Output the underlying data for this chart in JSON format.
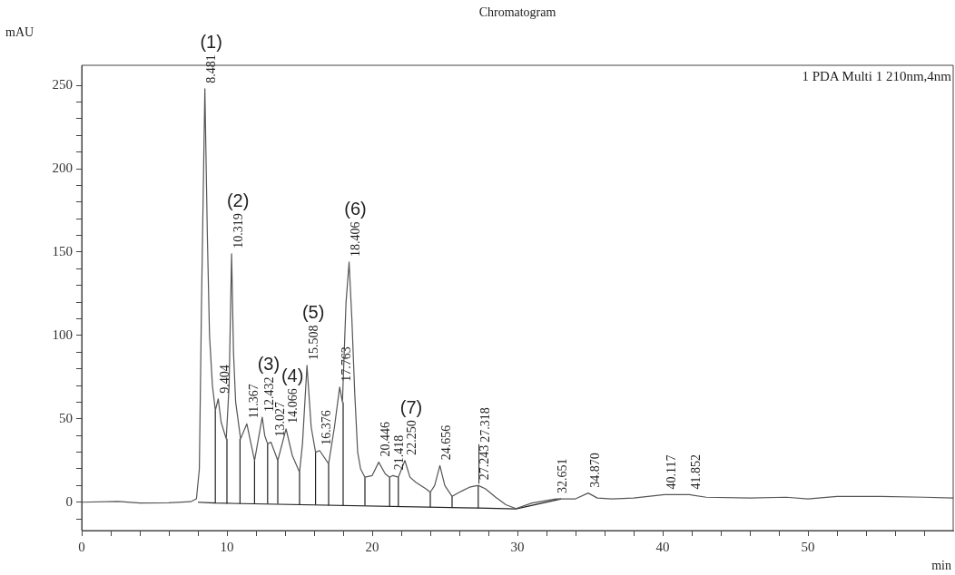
{
  "chart_data": {
    "type": "line",
    "title": "Chromatogram",
    "xlabel": "min",
    "ylabel": "mAU",
    "xlim": [
      0,
      60
    ],
    "ylim": [
      -17,
      262
    ],
    "xticks": [
      0,
      {
        "value": 2,
        "label": null
      },
      {
        "value": 4,
        "label": null
      },
      {
        "value": 6,
        "label": null
      },
      {
        "value": 8,
        "label": null
      },
      10,
      {
        "value": 12,
        "label": null
      },
      {
        "value": 14,
        "label": null
      },
      {
        "value": 16,
        "label": null
      },
      {
        "value": 18,
        "label": null
      },
      20,
      {
        "value": 22,
        "label": null
      },
      {
        "value": 24,
        "label": null
      },
      {
        "value": 26,
        "label": null
      },
      {
        "value": 28,
        "label": null
      },
      30,
      {
        "value": 32,
        "label": null
      },
      {
        "value": 34,
        "label": null
      },
      {
        "value": 36,
        "label": null
      },
      {
        "value": 38,
        "label": null
      },
      40,
      {
        "value": 42,
        "label": null
      },
      {
        "value": 44,
        "label": null
      },
      {
        "value": 46,
        "label": null
      },
      {
        "value": 48,
        "label": null
      },
      50,
      {
        "value": 52,
        "label": null
      },
      {
        "value": 54,
        "label": null
      },
      {
        "value": 56,
        "label": null
      },
      {
        "value": 58,
        "label": null
      }
    ],
    "yticks": [
      {
        "value": -10,
        "label": null
      },
      0,
      {
        "value": 10,
        "label": null
      },
      {
        "value": 20,
        "label": null
      },
      {
        "value": 30,
        "label": null
      },
      {
        "value": 40,
        "label": null
      },
      50,
      {
        "value": 60,
        "label": null
      },
      {
        "value": 70,
        "label": null
      },
      {
        "value": 80,
        "label": null
      },
      {
        "value": 90,
        "label": null
      },
      100,
      {
        "value": 110,
        "label": null
      },
      {
        "value": 120,
        "label": null
      },
      {
        "value": 130,
        "label": null
      },
      {
        "value": 140,
        "label": null
      },
      150,
      {
        "value": 160,
        "label": null
      },
      {
        "value": 170,
        "label": null
      },
      {
        "value": 180,
        "label": null
      },
      {
        "value": 190,
        "label": null
      },
      200,
      {
        "value": 210,
        "label": null
      },
      {
        "value": 220,
        "label": null
      },
      {
        "value": 230,
        "label": null
      },
      {
        "value": 240,
        "label": null
      },
      250
    ],
    "series": [
      {
        "color": "#555555",
        "x": [
          0,
          2.5,
          4,
          6,
          7.5,
          7.9,
          8.1,
          8.25,
          8.48,
          8.65,
          8.8,
          9.0,
          9.2,
          9.4,
          9.6,
          9.95,
          10.15,
          10.32,
          10.45,
          10.6,
          10.94,
          11.37,
          11.9,
          12.43,
          12.6,
          12.8,
          13.03,
          13.5,
          14.07,
          14.5,
          15.0,
          15.2,
          15.51,
          15.8,
          16.1,
          16.38,
          17.0,
          17.4,
          17.76,
          17.95,
          18.2,
          18.41,
          18.6,
          18.8,
          19.0,
          19.2,
          19.5,
          20.0,
          20.45,
          20.9,
          21.2,
          21.42,
          21.8,
          22.25,
          22.6,
          23.0,
          23.7,
          24.0,
          24.3,
          24.66,
          25.0,
          25.5,
          26.0,
          26.7,
          27.24,
          27.32,
          27.8,
          28.5,
          29.2,
          29.9,
          31.0,
          32.0,
          32.65,
          34.0,
          34.87,
          35.5,
          36.5,
          38,
          40.12,
          41.85,
          43,
          46,
          48.5,
          50,
          52,
          55,
          58,
          60
        ],
        "values": [
          0,
          0.5,
          -0.5,
          -0.3,
          0.3,
          2,
          20,
          120,
          248,
          160,
          100,
          70,
          55,
          62,
          48,
          38,
          70,
          149,
          90,
          60,
          38,
          47,
          25,
          51,
          40,
          35,
          36,
          25,
          44,
          28,
          18,
          35,
          82,
          45,
          30,
          31,
          23,
          45,
          69,
          60,
          120,
          144,
          110,
          65,
          30,
          20,
          15,
          16,
          24,
          17,
          15,
          16,
          15,
          25,
          15,
          12,
          8,
          6,
          10,
          22,
          10,
          3.5,
          6,
          9,
          10,
          10,
          8,
          3,
          -1.5,
          -3.8,
          -0.5,
          1,
          2,
          2,
          5.5,
          2.5,
          2,
          2.5,
          4.5,
          4.5,
          3,
          2.5,
          3,
          2,
          3.5,
          3.5,
          3,
          2.5
        ]
      },
      {
        "color": "#222222",
        "x": [
          8.0,
          9.2,
          27.3,
          29.9,
          33
        ],
        "values": [
          0,
          -0.5,
          -3.5,
          -4,
          2
        ]
      },
      {
        "color": "#222222",
        "x": [
          9.2,
          9.2,
          null,
          10,
          10,
          null,
          10.9,
          10.9,
          null,
          11.9,
          11.9,
          null,
          12.8,
          12.8,
          null,
          13.5,
          13.5,
          null,
          15,
          15,
          null,
          16.1,
          16.1,
          null,
          17,
          17,
          null,
          18,
          18,
          null,
          19.5,
          19.5,
          null,
          21.2,
          21.2,
          null,
          21.8,
          21.8,
          null,
          24,
          24,
          null,
          25.5,
          25.5,
          null,
          27.3,
          27.3
        ],
        "values": [
          -0.5,
          55,
          null,
          -1,
          38,
          null,
          -1,
          38,
          null,
          -1,
          25,
          null,
          -1,
          35,
          null,
          -1,
          25,
          null,
          -1.5,
          18,
          null,
          -1.5,
          30,
          null,
          -2,
          23,
          null,
          -2,
          60,
          null,
          -2,
          15,
          null,
          -2.5,
          15,
          null,
          -2.5,
          15,
          null,
          -3,
          6,
          null,
          -3,
          3.5,
          null,
          -3.5,
          10
        ]
      }
    ],
    "annotations": [
      "1 PDA Multi 1 210nm,4nm",
      {
        "text": "8.481",
        "x": 8.48,
        "y": 248
      },
      {
        "text": "(1)",
        "x": 8.48,
        "y": 248
      },
      {
        "text": "9.404",
        "x": 9.4,
        "y": 62
      },
      {
        "text": "10.319",
        "x": 10.32,
        "y": 149
      },
      {
        "text": "(2)",
        "x": 10.32,
        "y": 149
      },
      {
        "text": "11.367",
        "x": 11.37,
        "y": 47
      },
      {
        "text": "12.432",
        "x": 12.43,
        "y": 51
      },
      {
        "text": "(3)",
        "x": 12.43,
        "y": 51
      },
      {
        "text": "13.027",
        "x": 13.03,
        "y": 36
      },
      {
        "text": "14.066",
        "x": 14.07,
        "y": 44
      },
      {
        "text": "(4)",
        "x": 14.07,
        "y": 44
      },
      {
        "text": "15.508",
        "x": 15.51,
        "y": 82
      },
      {
        "text": "(5)",
        "x": 15.51,
        "y": 82
      },
      {
        "text": "16.376",
        "x": 16.38,
        "y": 31
      },
      {
        "text": "17.763",
        "x": 17.76,
        "y": 69
      },
      {
        "text": "18.406",
        "x": 18.41,
        "y": 144
      },
      {
        "text": "(6)",
        "x": 18.41,
        "y": 144
      },
      {
        "text": "20.446",
        "x": 20.45,
        "y": 24
      },
      {
        "text": "21.418",
        "x": 21.42,
        "y": 16
      },
      {
        "text": "22.250",
        "x": 22.25,
        "y": 25
      },
      {
        "text": "(7)",
        "x": 22.25,
        "y": 25
      },
      {
        "text": "24.656",
        "x": 24.66,
        "y": 22
      },
      {
        "text": "27.243",
        "x": 27.24,
        "y": 10
      },
      {
        "text": "27.318",
        "x": 27.32,
        "y": 10
      },
      {
        "text": "32.651",
        "x": 32.65,
        "y": 2
      },
      {
        "text": "34.870",
        "x": 34.87,
        "y": 5.5
      },
      {
        "text": "40.117",
        "x": 40.12,
        "y": 4.5
      },
      {
        "text": "41.852",
        "x": 41.85,
        "y": 4.5
      }
    ]
  }
}
